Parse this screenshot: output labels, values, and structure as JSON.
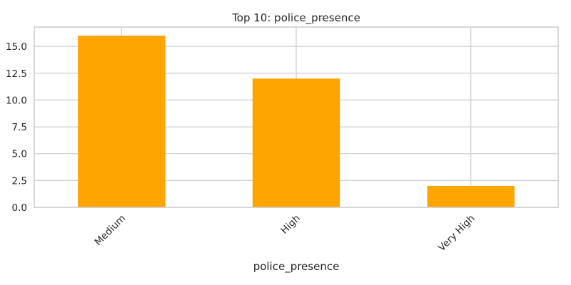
{
  "chart_data": {
    "type": "bar",
    "title": "Top 10: police_presence",
    "xlabel": "police_presence",
    "ylabel": "",
    "categories": [
      "Medium",
      "High",
      "Very High"
    ],
    "values": [
      16,
      12,
      2
    ],
    "ylim": [
      0,
      16.8
    ],
    "yticks": [
      0.0,
      2.5,
      5.0,
      7.5,
      10.0,
      12.5,
      15.0
    ],
    "ytick_labels": [
      "0.0",
      "2.5",
      "5.0",
      "7.5",
      "10.0",
      "12.5",
      "15.0"
    ],
    "bar_color": "#ffa500",
    "grid": true,
    "legend": "none",
    "xtick_rotation": "45"
  }
}
